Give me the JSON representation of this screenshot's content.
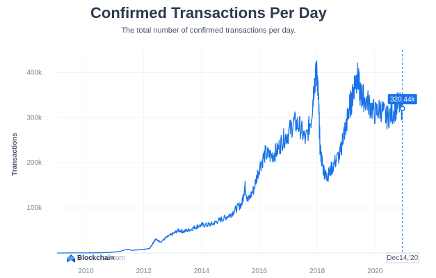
{
  "chart_data": {
    "type": "line",
    "title": "Confirmed Transactions Per Day",
    "subtitle": "The total number of confirmed transactions per day.",
    "ylabel": "Transactions",
    "xlabel": "",
    "xlim": [
      2009.0,
      2021.1
    ],
    "ylim": [
      0,
      450000
    ],
    "x_ticks": [
      "2010",
      "2012",
      "2014",
      "2016",
      "2018",
      "2020"
    ],
    "y_ticks": [
      "100k",
      "200k",
      "300k",
      "400k"
    ],
    "grid": true,
    "series": [
      {
        "color": "#1a73e8",
        "points": [
          [
            2009.0,
            0
          ],
          [
            2010.0,
            200
          ],
          [
            2010.5,
            500
          ],
          [
            2010.9,
            1500
          ],
          [
            2011.2,
            4000
          ],
          [
            2011.4,
            8000
          ],
          [
            2011.6,
            6000
          ],
          [
            2012.0,
            8000
          ],
          [
            2012.2,
            10000
          ],
          [
            2012.3,
            20000
          ],
          [
            2012.4,
            30000
          ],
          [
            2012.6,
            25000
          ],
          [
            2012.8,
            35000
          ],
          [
            2013.0,
            42000
          ],
          [
            2013.2,
            50000
          ],
          [
            2013.4,
            48000
          ],
          [
            2013.6,
            52000
          ],
          [
            2013.8,
            58000
          ],
          [
            2014.0,
            62000
          ],
          [
            2014.2,
            62000
          ],
          [
            2014.4,
            65000
          ],
          [
            2014.6,
            72000
          ],
          [
            2014.8,
            78000
          ],
          [
            2015.0,
            85000
          ],
          [
            2015.2,
            98000
          ],
          [
            2015.4,
            110000
          ],
          [
            2015.5,
            150000
          ],
          [
            2015.6,
            115000
          ],
          [
            2015.8,
            140000
          ],
          [
            2016.0,
            190000
          ],
          [
            2016.2,
            220000
          ],
          [
            2016.4,
            215000
          ],
          [
            2016.6,
            225000
          ],
          [
            2016.8,
            250000
          ],
          [
            2017.0,
            265000
          ],
          [
            2017.2,
            290000
          ],
          [
            2017.4,
            280000
          ],
          [
            2017.6,
            250000
          ],
          [
            2017.8,
            300000
          ],
          [
            2017.9,
            380000
          ],
          [
            2018.0,
            400000
          ],
          [
            2018.05,
            330000
          ],
          [
            2018.1,
            230000
          ],
          [
            2018.2,
            190000
          ],
          [
            2018.3,
            170000
          ],
          [
            2018.4,
            175000
          ],
          [
            2018.6,
            200000
          ],
          [
            2018.8,
            220000
          ],
          [
            2018.9,
            260000
          ],
          [
            2019.0,
            280000
          ],
          [
            2019.1,
            320000
          ],
          [
            2019.2,
            340000
          ],
          [
            2019.3,
            380000
          ],
          [
            2019.4,
            390000
          ],
          [
            2019.5,
            350000
          ],
          [
            2019.6,
            345000
          ],
          [
            2019.8,
            330000
          ],
          [
            2020.0,
            310000
          ],
          [
            2020.2,
            320000
          ],
          [
            2020.4,
            300000
          ],
          [
            2020.6,
            310000
          ],
          [
            2020.8,
            330000
          ],
          [
            2020.95,
            320440
          ]
        ]
      }
    ],
    "tooltip": {
      "value": "320.44k"
    },
    "crosshair_date": "Dec14,'20",
    "watermark": {
      "brand": "Blockchain",
      "suffix": ".com"
    }
  }
}
